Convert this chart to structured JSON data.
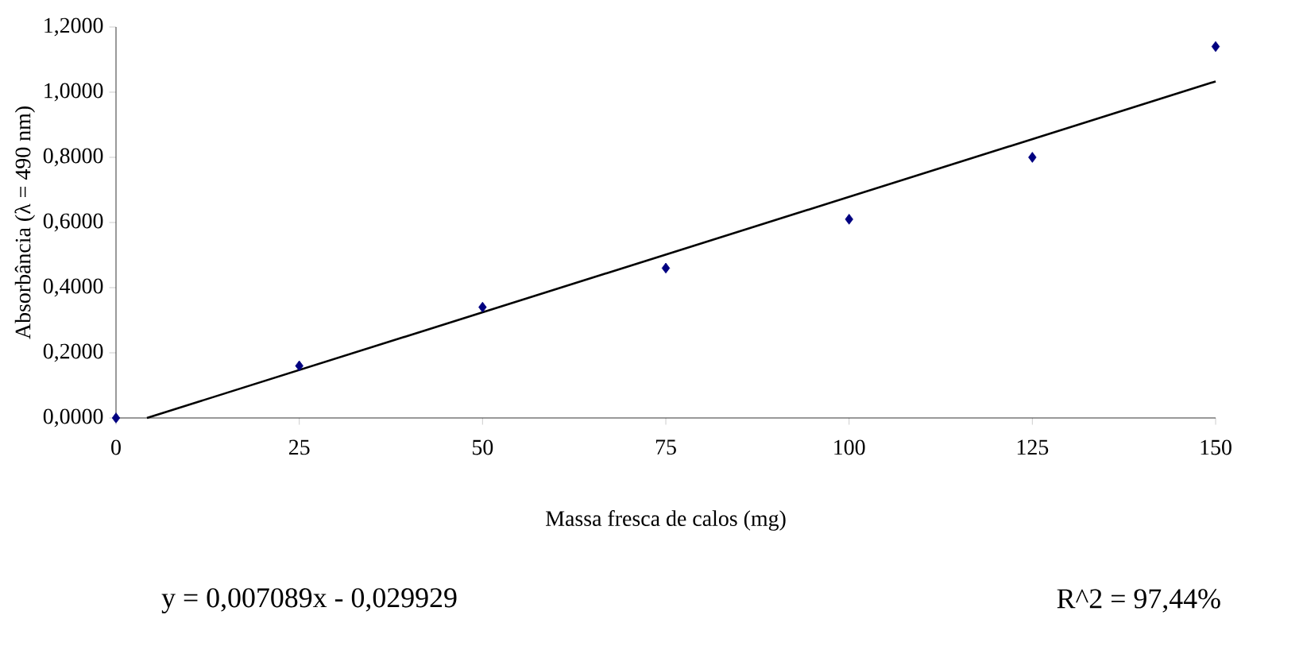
{
  "chart_data": {
    "type": "scatter",
    "xlabel": "Massa fresca de calos (mg)",
    "ylabel": "Absorbância (λ = 490 nm)",
    "xlim": [
      0,
      150
    ],
    "xticks": [
      0,
      25,
      50,
      75,
      100,
      125,
      150
    ],
    "ylim": [
      0,
      1.2
    ],
    "yticks": [
      {
        "value": 0,
        "label": "0,0000"
      },
      {
        "value": 0.2,
        "label": "0,2000"
      },
      {
        "value": 0.4,
        "label": "0,4000"
      },
      {
        "value": 0.6,
        "label": "0,6000"
      },
      {
        "value": 0.8,
        "label": "0,8000"
      },
      {
        "value": 1.0,
        "label": "1,0000"
      },
      {
        "value": 1.2,
        "label": "1,2000"
      }
    ],
    "series": [
      {
        "marker": "diamond",
        "color": "#000080",
        "x": [
          0,
          25,
          50,
          75,
          100,
          125,
          150
        ],
        "values": [
          0,
          0.16,
          0.34,
          0.46,
          0.61,
          0.8,
          1.14
        ]
      },
      {
        "type": "line",
        "marker": "none",
        "color": "#000000",
        "x": [
          4.22,
          150
        ],
        "values": [
          0,
          1.033
        ]
      }
    ],
    "annotations": [
      "y = 0,007089x - 0,029929",
      "R^2 = 97,44%"
    ]
  }
}
